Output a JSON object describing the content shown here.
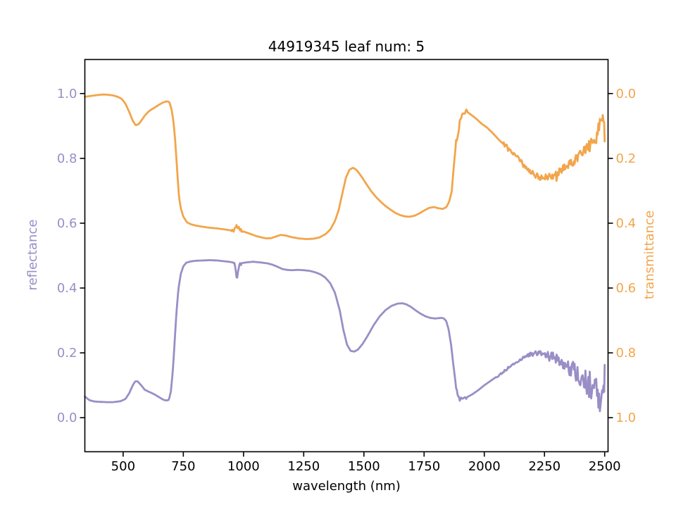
{
  "title": "44919345 leaf num: 5",
  "x_axis": {
    "label": "wavelength (nm)",
    "tick_labels": [
      "500",
      "750",
      "1000",
      "1250",
      "1500",
      "1750",
      "2000",
      "2250",
      "2500"
    ],
    "tick_values": [
      500,
      750,
      1000,
      1250,
      1500,
      1750,
      2000,
      2250,
      2500
    ],
    "color": "#000000"
  },
  "y_axis_left": {
    "label": "reflectance",
    "tick_labels": [
      "0.0",
      "0.2",
      "0.4",
      "0.6",
      "0.8",
      "1.0"
    ],
    "tick_values": [
      0.0,
      0.2,
      0.4,
      0.6,
      0.8,
      1.0
    ],
    "color": "#9a8ec6"
  },
  "y_axis_right": {
    "label": "transmittance",
    "tick_labels": [
      "0.0",
      "0.2",
      "0.4",
      "0.6",
      "0.8",
      "1.0"
    ],
    "tick_values": [
      0.0,
      0.2,
      0.4,
      0.6,
      0.8,
      1.0
    ],
    "inverted": true,
    "color": "#f2a54b"
  },
  "chart_data": {
    "type": "line",
    "title": "44919345 leaf num: 5",
    "xlabel": "wavelength (nm)",
    "ylabel_left": "reflectance",
    "ylabel_right": "transmittance",
    "xlim": [
      341,
      2514
    ],
    "ylim_left": [
      -0.105,
      1.105
    ],
    "ylim_right_inverted": [
      1.105,
      -0.105
    ],
    "grid": false,
    "legend": false,
    "series": [
      {
        "name": "reflectance",
        "axis": "left",
        "color": "#9a8ec6",
        "linewidth": 2.8,
        "x": [
          341,
          360,
          380,
          400,
          430,
          460,
          490,
          510,
          525,
          540,
          550,
          560,
          575,
          590,
          610,
          630,
          650,
          668,
          680,
          690,
          698,
          706,
          714,
          722,
          730,
          740,
          750,
          762,
          780,
          800,
          830,
          860,
          890,
          915,
          940,
          955,
          963,
          968,
          973,
          978,
          985,
          995,
          1010,
          1040,
          1070,
          1100,
          1120,
          1140,
          1160,
          1180,
          1200,
          1225,
          1250,
          1275,
          1300,
          1320,
          1340,
          1360,
          1380,
          1400,
          1415,
          1430,
          1445,
          1460,
          1475,
          1495,
          1515,
          1540,
          1565,
          1590,
          1615,
          1640,
          1660,
          1675,
          1695,
          1715,
          1735,
          1755,
          1775,
          1795,
          1810,
          1822,
          1832,
          1842,
          1852,
          1862,
          1872,
          1882,
          1890,
          1898,
          1905,
          1915,
          1930,
          1950,
          1975,
          2000,
          2025,
          2050,
          2075,
          2100,
          2125,
          2150,
          2175,
          2195,
          2215,
          2235,
          2255,
          2275,
          2295,
          2315,
          2335,
          2355,
          2375,
          2395,
          2415,
          2435,
          2455,
          2470,
          2482,
          2492,
          2500
        ],
        "y": [
          0.065,
          0.054,
          0.05,
          0.049,
          0.048,
          0.048,
          0.051,
          0.058,
          0.075,
          0.1,
          0.112,
          0.112,
          0.1,
          0.086,
          0.079,
          0.072,
          0.063,
          0.055,
          0.053,
          0.055,
          0.08,
          0.14,
          0.235,
          0.33,
          0.4,
          0.445,
          0.467,
          0.478,
          0.482,
          0.484,
          0.485,
          0.486,
          0.485,
          0.483,
          0.481,
          0.479,
          0.476,
          0.45,
          0.428,
          0.46,
          0.473,
          0.477,
          0.479,
          0.481,
          0.479,
          0.476,
          0.472,
          0.466,
          0.459,
          0.456,
          0.455,
          0.456,
          0.455,
          0.453,
          0.448,
          0.442,
          0.432,
          0.415,
          0.385,
          0.33,
          0.27,
          0.225,
          0.206,
          0.204,
          0.21,
          0.228,
          0.252,
          0.285,
          0.312,
          0.332,
          0.345,
          0.352,
          0.353,
          0.35,
          0.342,
          0.331,
          0.321,
          0.313,
          0.308,
          0.306,
          0.307,
          0.308,
          0.306,
          0.298,
          0.272,
          0.225,
          0.16,
          0.1,
          0.066,
          0.057,
          0.062,
          0.057,
          0.064,
          0.072,
          0.085,
          0.1,
          0.113,
          0.126,
          0.14,
          0.154,
          0.168,
          0.18,
          0.19,
          0.196,
          0.199,
          0.198,
          0.194,
          0.189,
          0.182,
          0.173,
          0.163,
          0.152,
          0.141,
          0.129,
          0.116,
          0.104,
          0.09,
          0.075,
          0.057,
          0.088,
          0.123
        ],
        "noise": [
          [
            960,
            990,
            0.004
          ],
          [
            1880,
            1925,
            0.005
          ],
          [
            2050,
            2180,
            0.004
          ],
          [
            2180,
            2260,
            0.008
          ],
          [
            2260,
            2340,
            0.016
          ],
          [
            2340,
            2420,
            0.028
          ],
          [
            2420,
            2500,
            0.042
          ]
        ]
      },
      {
        "name": "transmittance",
        "axis": "right_inverted",
        "color": "#f2a54b",
        "linewidth": 2.8,
        "x": [
          341,
          360,
          380,
          400,
          420,
          440,
          460,
          480,
          495,
          510,
          525,
          540,
          552,
          565,
          578,
          590,
          605,
          618,
          632,
          648,
          662,
          675,
          685,
          692,
          700,
          708,
          716,
          724,
          732,
          740,
          750,
          765,
          780,
          800,
          830,
          860,
          890,
          920,
          945,
          958,
          964,
          970,
          976,
          982,
          990,
          1005,
          1025,
          1050,
          1075,
          1095,
          1115,
          1135,
          1155,
          1175,
          1200,
          1230,
          1260,
          1290,
          1315,
          1340,
          1360,
          1380,
          1395,
          1410,
          1425,
          1440,
          1455,
          1470,
          1490,
          1510,
          1530,
          1550,
          1570,
          1590,
          1610,
          1630,
          1650,
          1670,
          1690,
          1710,
          1730,
          1750,
          1770,
          1790,
          1810,
          1828,
          1843,
          1855,
          1865,
          1875,
          1883,
          1890,
          1898,
          1906,
          1914,
          1922,
          1935,
          1950,
          1970,
          1990,
          2010,
          2035,
          2060,
          2085,
          2110,
          2135,
          2160,
          2185,
          2205,
          2225,
          2245,
          2265,
          2285,
          2305,
          2325,
          2345,
          2365,
          2385,
          2405,
          2425,
          2445,
          2462,
          2475,
          2486,
          2493,
          2500
        ],
        "y": [
          0.01,
          0.008,
          0.006,
          0.004,
          0.003,
          0.004,
          0.006,
          0.011,
          0.017,
          0.032,
          0.056,
          0.084,
          0.098,
          0.094,
          0.081,
          0.068,
          0.056,
          0.049,
          0.043,
          0.035,
          0.029,
          0.025,
          0.024,
          0.027,
          0.045,
          0.08,
          0.142,
          0.232,
          0.32,
          0.355,
          0.38,
          0.397,
          0.403,
          0.407,
          0.411,
          0.414,
          0.416,
          0.419,
          0.422,
          0.424,
          0.413,
          0.408,
          0.421,
          0.412,
          0.424,
          0.427,
          0.432,
          0.439,
          0.444,
          0.447,
          0.446,
          0.441,
          0.436,
          0.438,
          0.443,
          0.447,
          0.449,
          0.448,
          0.444,
          0.434,
          0.42,
          0.393,
          0.36,
          0.31,
          0.26,
          0.235,
          0.229,
          0.236,
          0.256,
          0.279,
          0.301,
          0.319,
          0.334,
          0.347,
          0.358,
          0.368,
          0.375,
          0.379,
          0.38,
          0.377,
          0.37,
          0.361,
          0.353,
          0.35,
          0.354,
          0.356,
          0.35,
          0.332,
          0.3,
          0.21,
          0.15,
          0.13,
          0.09,
          0.07,
          0.056,
          0.054,
          0.06,
          0.068,
          0.08,
          0.094,
          0.104,
          0.122,
          0.142,
          0.16,
          0.178,
          0.197,
          0.218,
          0.237,
          0.249,
          0.256,
          0.26,
          0.258,
          0.253,
          0.245,
          0.235,
          0.223,
          0.211,
          0.199,
          0.186,
          0.172,
          0.155,
          0.135,
          0.112,
          0.088,
          0.07,
          0.125
        ],
        "noise": [
          [
            950,
            995,
            0.005
          ],
          [
            1878,
            1930,
            0.008
          ],
          [
            2080,
            2200,
            0.008
          ],
          [
            2200,
            2300,
            0.01
          ],
          [
            2300,
            2400,
            0.014
          ],
          [
            2400,
            2460,
            0.018
          ],
          [
            2460,
            2500,
            0.024
          ]
        ]
      }
    ]
  }
}
